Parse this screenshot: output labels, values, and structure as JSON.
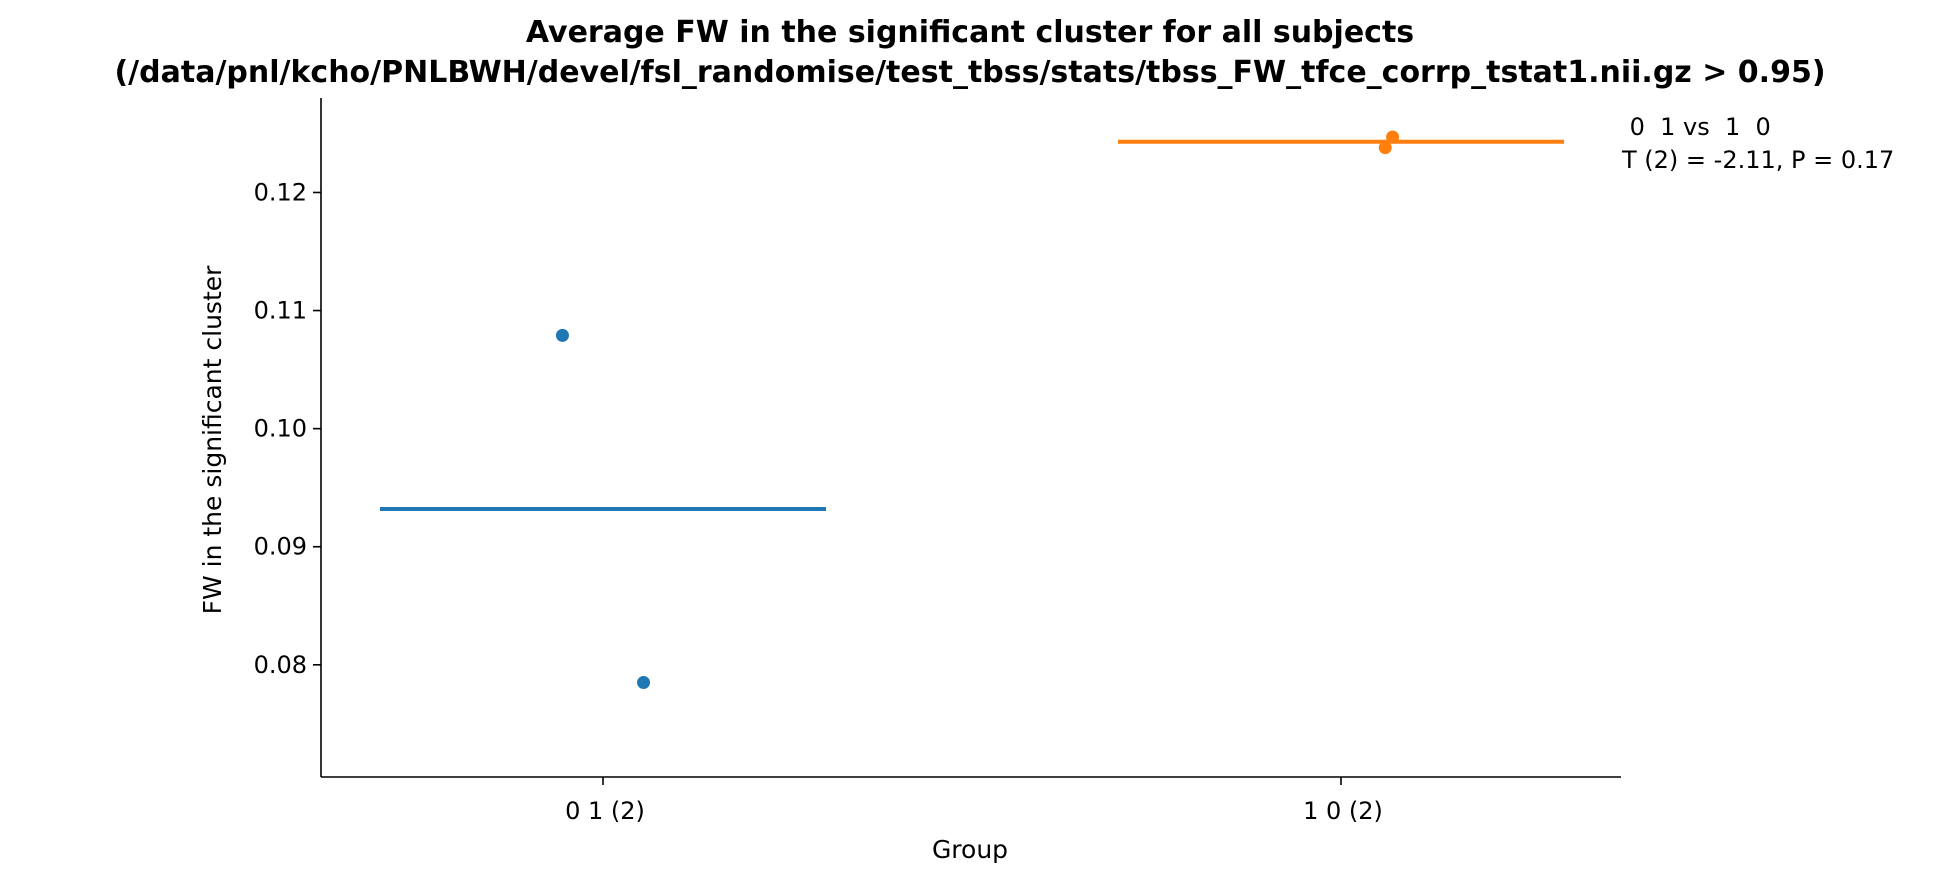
{
  "chart_data": {
    "type": "scatter",
    "title_lines": [
      "Average FW in the significant cluster for all subjects",
      "(/data/pnl/kcho/PNLBWH/devel/fsl_randomise/test_tbss/stats/tbss_FW_tfce_corrp_tstat1.nii.gz > 0.95)"
    ],
    "xlabel": "Group",
    "ylabel": "FW in the significant cluster",
    "categories": [
      "0  1 (2)",
      "1  0 (2)"
    ],
    "ylim": [
      0.0705,
      0.128
    ],
    "yticks": [
      0.08,
      0.09,
      0.1,
      0.11,
      0.12
    ],
    "ytick_labels": [
      "0.08",
      "0.09",
      "0.10",
      "0.11",
      "0.12"
    ],
    "grid": false,
    "series": [
      {
        "category_index": 0,
        "color": "#1f77b4",
        "points": [
          {
            "jitter": -0.055,
            "y": 0.1079
          },
          {
            "jitter": 0.055,
            "y": 0.0785
          }
        ],
        "mean": 0.0932
      },
      {
        "category_index": 1,
        "color": "#ff7f0e",
        "points": [
          {
            "jitter": 0.06,
            "y": 0.1238
          },
          {
            "jitter": 0.07,
            "y": 0.1247
          }
        ],
        "mean": 0.1243
      }
    ],
    "annotation": {
      "lines": [
        " 0  1 vs  1  0",
        "T (2) = -2.11, P = 0.17"
      ]
    }
  }
}
